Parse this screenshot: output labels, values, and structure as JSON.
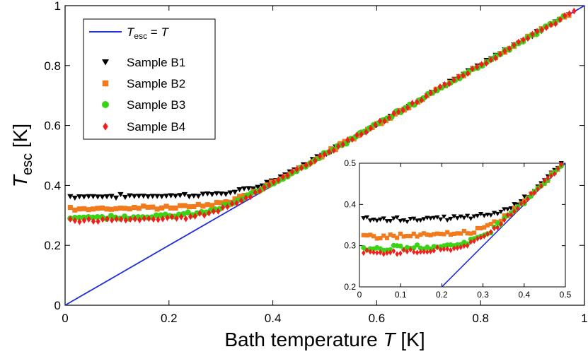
{
  "chart_data": [
    {
      "name": "main",
      "type": "scatter",
      "xlabel": {
        "prefix": "Bath temperature ",
        "var": "T",
        "unit": " [K]"
      },
      "ylabel": {
        "var": "T",
        "sub": "esc",
        "unit": " [K]"
      },
      "xlim": [
        0,
        1
      ],
      "ylim": [
        0,
        1
      ],
      "xticks": [
        "0",
        "0.2",
        "0.4",
        "0.6",
        "0.8",
        "1"
      ],
      "yticks": [
        "0",
        "0.2",
        "0.4",
        "0.6",
        "0.8",
        "1"
      ],
      "legend": {
        "position": "top-left",
        "line_entry": {
          "var": "T",
          "sub": "esc",
          "rest": " = ",
          "var2": "T"
        },
        "entries": [
          "Sample B1",
          "Sample B2",
          "Sample B3",
          "Sample B4"
        ]
      },
      "reference_line": {
        "name": "T_esc = T",
        "x": [
          0,
          1
        ],
        "y": [
          0,
          1
        ],
        "color": "#1f2fd8"
      },
      "series": [
        {
          "name": "Sample B1",
          "marker": "triangle-down",
          "color": "#000000",
          "plateau": 0.36,
          "x_start": 0.01,
          "x_end": 0.97,
          "n": 110
        },
        {
          "name": "Sample B2",
          "marker": "square",
          "color": "#f07a1c",
          "plateau": 0.32,
          "x_start": 0.01,
          "x_end": 0.97,
          "n": 110
        },
        {
          "name": "Sample B3",
          "marker": "circle",
          "color": "#3ad414",
          "plateau": 0.29,
          "x_start": 0.01,
          "x_end": 0.96,
          "n": 110
        },
        {
          "name": "Sample B4",
          "marker": "diamond",
          "color": "#f21d1d",
          "plateau": 0.28,
          "x_start": 0.01,
          "x_end": 0.98,
          "n": 110
        }
      ]
    },
    {
      "name": "inset",
      "type": "scatter",
      "xlim": [
        0,
        0.5
      ],
      "ylim": [
        0.2,
        0.5
      ],
      "xticks": [
        "0",
        "0.1",
        "0.2",
        "0.3",
        "0.4",
        "0.5"
      ],
      "yticks": [
        "0.2",
        "0.3",
        "0.4",
        "0.5"
      ],
      "reference_line": {
        "name": "T_esc = T",
        "x": [
          0.2,
          0.5
        ],
        "y": [
          0.2,
          0.5
        ],
        "color": "#1f2fd8"
      },
      "series_x_end": 0.49,
      "series_n": 60
    }
  ]
}
